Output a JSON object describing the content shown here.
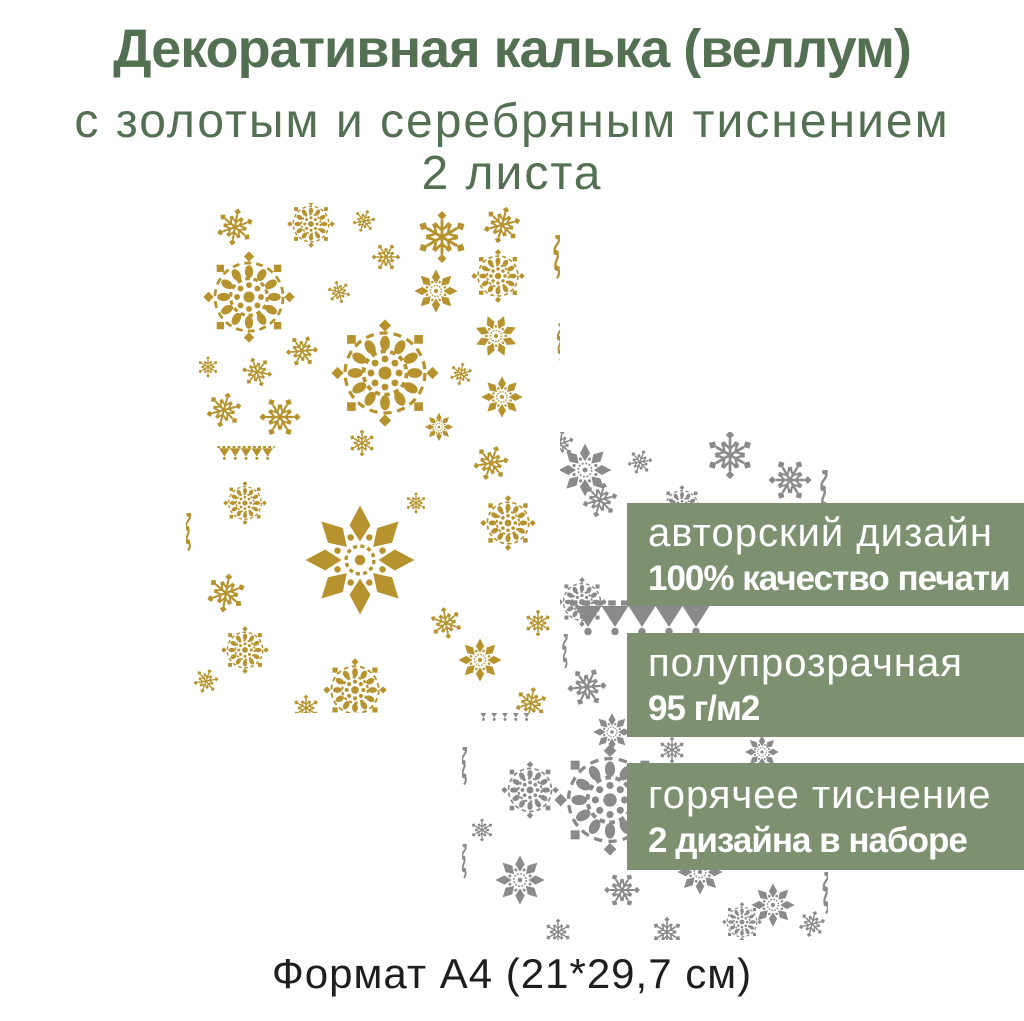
{
  "theme": {
    "title_green": "#547052",
    "badge_green": "#7d9170",
    "gold": "#b6932e",
    "silver": "#8a8a8a",
    "text_dark": "#1e1e1e",
    "background": "#ffffff"
  },
  "header": {
    "title": "Декоративная калька (веллум)",
    "subtitle": "с золотым и серебряным тиснением",
    "sheet_count": "2 листа"
  },
  "badges": [
    {
      "line1": "авторский дизайн",
      "line2": "100% качество печати"
    },
    {
      "line1": "полупрозрачная",
      "line2": "95 г/м2"
    },
    {
      "line1": "горячее тиснение",
      "line2": "2 дизайна в наборе"
    }
  ],
  "sheets": {
    "gold": {
      "description": "лист с золотым тиснением (снежинки)"
    },
    "silver": {
      "description": "лист с серебряным тиснением (снежинки)"
    }
  },
  "footer": {
    "format": "Формат А4 (21*29,7 см)"
  }
}
